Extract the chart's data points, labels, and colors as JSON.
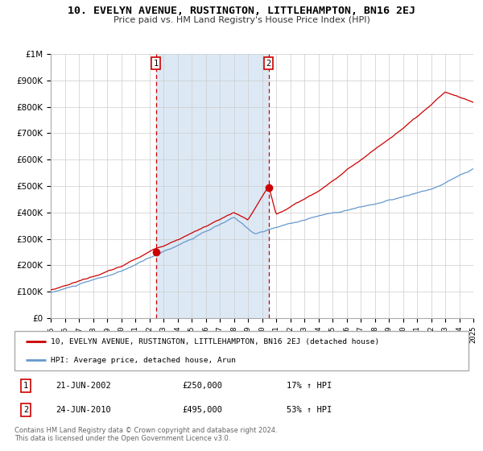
{
  "title": "10. EVELYN AVENUE, RUSTINGTON, LITTLEHAMPTON, BN16 2EJ",
  "subtitle": "Price paid vs. HM Land Registry's House Price Index (HPI)",
  "red_label": "10, EVELYN AVENUE, RUSTINGTON, LITTLEHAMPTON, BN16 2EJ (detached house)",
  "blue_label": "HPI: Average price, detached house, Arun",
  "transaction1_date": "21-JUN-2002",
  "transaction1_price": 250000,
  "transaction1_hpi": "17% ↑ HPI",
  "transaction2_date": "24-JUN-2010",
  "transaction2_price": 495000,
  "transaction2_hpi": "53% ↑ HPI",
  "t1_year": 2002.47,
  "t2_year": 2010.47,
  "red_color": "#cc0000",
  "blue_color": "#6699cc",
  "shade_color": "#dce9f5",
  "background_color": "#ffffff",
  "grid_color": "#cccccc",
  "footnote_line1": "Contains HM Land Registry data © Crown copyright and database right 2024.",
  "footnote_line2": "This data is licensed under the Open Government Licence v3.0.",
  "ylim": [
    0,
    1000000
  ],
  "xlim_start": 1995,
  "xlim_end": 2025,
  "yticks": [
    0,
    100000,
    200000,
    300000,
    400000,
    500000,
    600000,
    700000,
    800000,
    900000,
    1000000
  ],
  "ytick_labels": [
    "£0",
    "£100K",
    "£200K",
    "£300K",
    "£400K",
    "£500K",
    "£600K",
    "£700K",
    "£800K",
    "£900K",
    "£1M"
  ]
}
